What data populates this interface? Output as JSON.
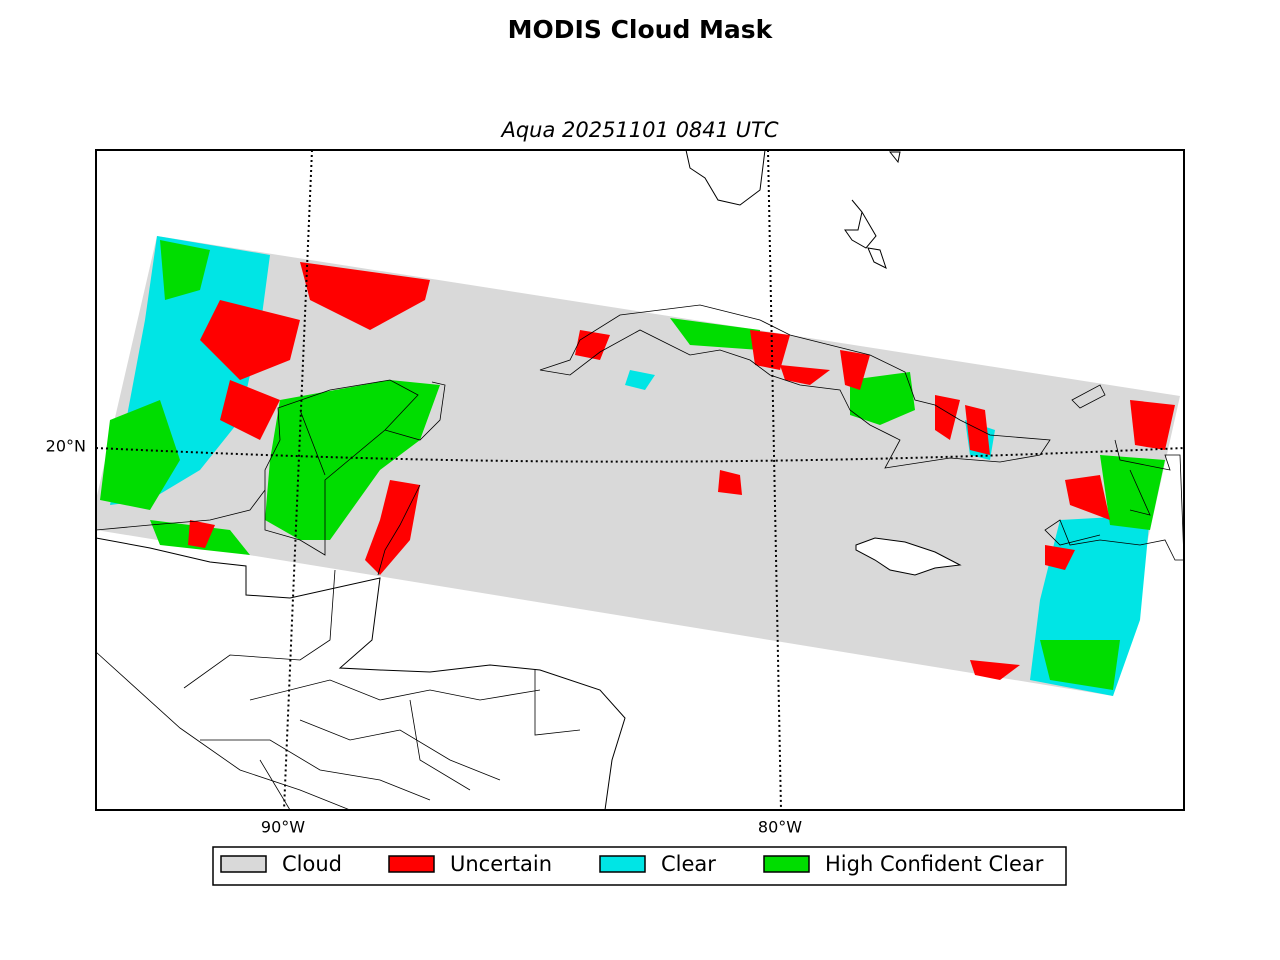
{
  "title": "MODIS Cloud Mask",
  "subtitle": "Aqua 20251101 0841 UTC",
  "gridlines": {
    "latitude": [
      "20°N"
    ],
    "longitude": [
      "90°W",
      "80°W"
    ]
  },
  "legend": [
    {
      "name": "Cloud",
      "color": "#d9d9d9"
    },
    {
      "name": "Uncertain",
      "color": "#ff0000"
    },
    {
      "name": "Clear",
      "color": "#00e5e5"
    },
    {
      "name": "High Confident Clear",
      "color": "#00dd00"
    }
  ]
}
